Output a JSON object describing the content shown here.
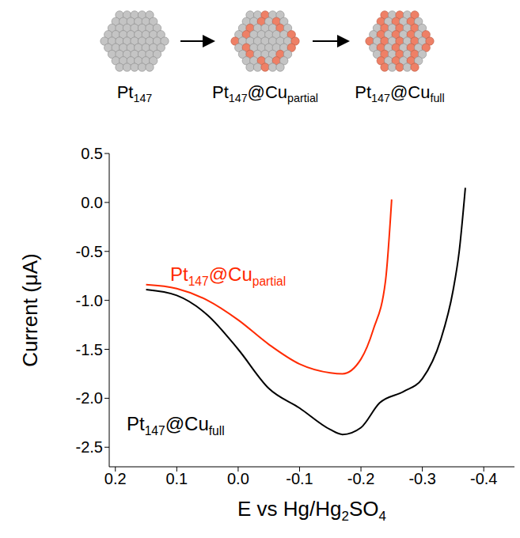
{
  "schematic": {
    "stages": [
      "Pt147",
      "Pt147@Cupartial",
      "Pt147@Cufull"
    ]
  },
  "chart_data": {
    "type": "line",
    "x_label": "E vs Hg/Hg2SO4",
    "y_label": "Current (μA)",
    "xlim": [
      0.21,
      -0.45
    ],
    "xticks": [
      0.2,
      0.1,
      {
        "value": 0,
        "label": "0.0"
      },
      -0.1,
      -0.2,
      -0.3,
      -0.4
    ],
    "ylim": [
      -2.7,
      0.5
    ],
    "yticks": [
      0.5,
      {
        "value": 0,
        "label": "0.0"
      },
      -0.5,
      {
        "value": -1,
        "label": "-1.0"
      },
      -1.5,
      {
        "value": -2,
        "label": "-2.0"
      },
      -2.5
    ],
    "grid": false,
    "series": [
      {
        "name": "Pt147@Cupartial",
        "color": "#ff2a00",
        "x": [
          0.15,
          0.1,
          0.05,
          0.0,
          -0.05,
          -0.1,
          -0.15,
          -0.17,
          -0.2,
          -0.22,
          -0.24,
          -0.25
        ],
        "values": [
          -0.84,
          -0.88,
          -1.0,
          -1.2,
          -1.45,
          -1.65,
          -1.74,
          -1.75,
          -1.6,
          -1.3,
          -0.8,
          0.03
        ]
      },
      {
        "name": "Pt147@Cufull",
        "color": "#000000",
        "x": [
          0.15,
          0.1,
          0.05,
          0.0,
          -0.05,
          -0.1,
          -0.15,
          -0.17,
          -0.2,
          -0.23,
          -0.27,
          -0.3,
          -0.33,
          -0.35,
          -0.36,
          -0.37
        ],
        "values": [
          -0.89,
          -0.95,
          -1.15,
          -1.5,
          -1.9,
          -2.1,
          -2.32,
          -2.37,
          -2.3,
          -2.05,
          -1.93,
          -1.8,
          -1.4,
          -0.9,
          -0.5,
          0.15
        ]
      }
    ]
  }
}
